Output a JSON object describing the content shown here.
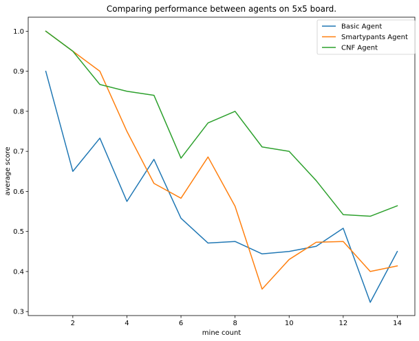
{
  "chart_data": {
    "type": "line",
    "title": "Comparing performance between agents on 5x5 board.",
    "xlabel": "mine count",
    "ylabel": "average score",
    "xlim": [
      0.35,
      14.65
    ],
    "ylim": [
      0.29,
      1.035
    ],
    "xticks": [
      2,
      4,
      6,
      8,
      10,
      12,
      14
    ],
    "yticks": [
      0.3,
      0.4,
      0.5,
      0.6,
      0.7,
      0.8,
      0.9,
      1.0
    ],
    "ytick_labels": [
      "0.3",
      "0.4",
      "0.5",
      "0.6",
      "0.7",
      "0.8",
      "0.9",
      "1.0"
    ],
    "grid": false,
    "legend_position": "top-right",
    "x": [
      1,
      2,
      3,
      4,
      5,
      6,
      7,
      8,
      9,
      10,
      11,
      12,
      13,
      14
    ],
    "series": [
      {
        "name": "Basic Agent",
        "color": "#1f77b4",
        "values": [
          0.9,
          0.65,
          0.733,
          0.575,
          0.68,
          0.533,
          0.471,
          0.475,
          0.444,
          0.45,
          0.463,
          0.508,
          0.323,
          0.45
        ]
      },
      {
        "name": "Smartypants Agent",
        "color": "#ff7f0e",
        "values": [
          1.0,
          0.95,
          0.9,
          0.75,
          0.62,
          0.583,
          0.686,
          0.563,
          0.356,
          0.43,
          0.473,
          0.475,
          0.4,
          0.414
        ]
      },
      {
        "name": "CNF Agent",
        "color": "#2ca02c",
        "values": [
          1.0,
          0.95,
          0.867,
          0.85,
          0.84,
          0.683,
          0.771,
          0.8,
          0.711,
          0.7,
          0.627,
          0.542,
          0.538,
          0.564
        ]
      }
    ]
  }
}
